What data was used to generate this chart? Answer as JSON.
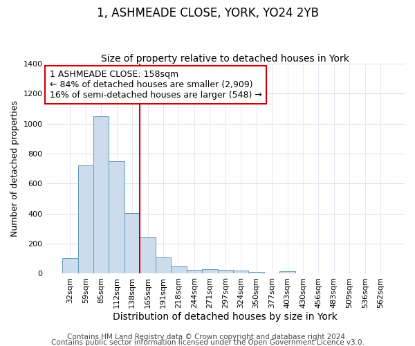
{
  "title": "1, ASHMEADE CLOSE, YORK, YO24 2YB",
  "subtitle": "Size of property relative to detached houses in York",
  "xlabel": "Distribution of detached houses by size in York",
  "ylabel": "Number of detached properties",
  "categories": [
    "32sqm",
    "59sqm",
    "85sqm",
    "112sqm",
    "138sqm",
    "165sqm",
    "191sqm",
    "218sqm",
    "244sqm",
    "271sqm",
    "297sqm",
    "324sqm",
    "350sqm",
    "377sqm",
    "403sqm",
    "430sqm",
    "456sqm",
    "483sqm",
    "509sqm",
    "536sqm",
    "562sqm"
  ],
  "values": [
    105,
    720,
    1050,
    750,
    405,
    240,
    110,
    50,
    25,
    30,
    25,
    20,
    10,
    0,
    15,
    0,
    0,
    0,
    0,
    0,
    0
  ],
  "bar_color": "#ccdcec",
  "bar_edge_color": "#6699bb",
  "vline_index": 5,
  "vline_color": "#cc0000",
  "ylim": [
    0,
    1400
  ],
  "yticks": [
    0,
    200,
    400,
    600,
    800,
    1000,
    1200,
    1400
  ],
  "annotation_text": "1 ASHMEADE CLOSE: 158sqm\n← 84% of detached houses are smaller (2,909)\n16% of semi-detached houses are larger (548) →",
  "annotation_box_color": "#ffffff",
  "annotation_box_edge": "#cc0000",
  "footer_line1": "Contains HM Land Registry data © Crown copyright and database right 2024.",
  "footer_line2": "Contains public sector information licensed under the Open Government Licence v3.0.",
  "background_color": "#ffffff",
  "plot_bg_color": "#ffffff",
  "grid_color": "#ddddee",
  "title_fontsize": 12,
  "subtitle_fontsize": 10,
  "xlabel_fontsize": 10,
  "ylabel_fontsize": 9,
  "tick_fontsize": 8,
  "footer_fontsize": 7.5,
  "annotation_fontsize": 9
}
